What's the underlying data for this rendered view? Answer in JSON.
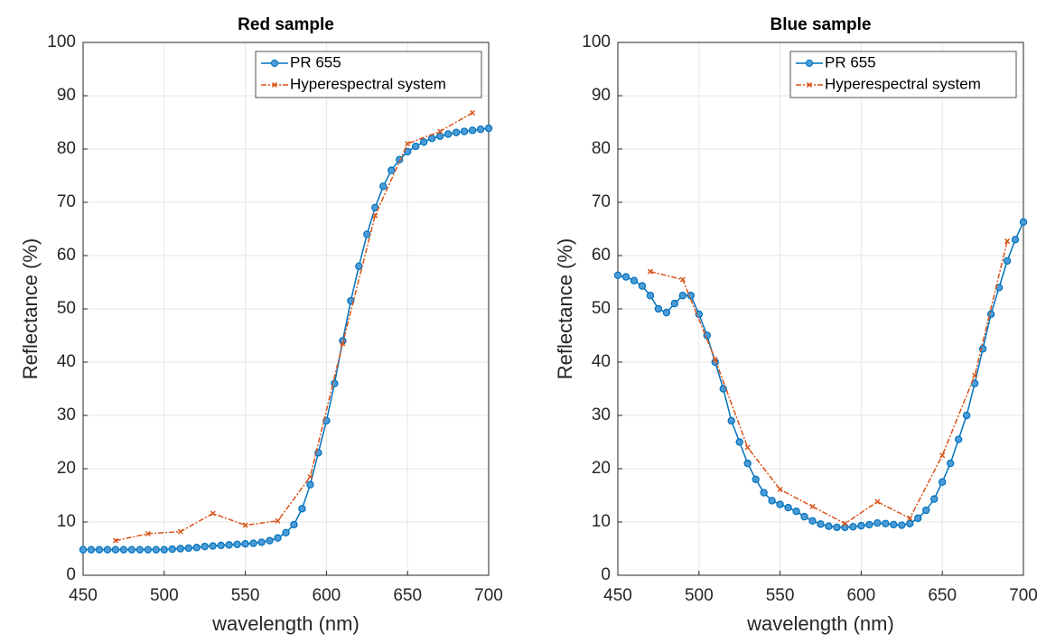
{
  "chart_data": [
    {
      "type": "line",
      "title": "Red sample",
      "x_label": "wavelength (nm)",
      "y_label": "Reflectance (%)",
      "xlim": [
        450,
        700
      ],
      "xticks": [
        450,
        500,
        550,
        600,
        650,
        700
      ],
      "ylim": [
        0,
        100
      ],
      "yticks": [
        0,
        10,
        20,
        30,
        40,
        50,
        60,
        70,
        80,
        90,
        100
      ],
      "grid": true,
      "legend": "upper right",
      "series": [
        {
          "name": "PR 655",
          "color": "#0072BD",
          "marker": "circle",
          "x": [
            450,
            455,
            460,
            465,
            470,
            475,
            480,
            485,
            490,
            495,
            500,
            505,
            510,
            515,
            520,
            525,
            530,
            535,
            540,
            545,
            550,
            555,
            560,
            565,
            570,
            575,
            580,
            585,
            590,
            595,
            600,
            605,
            610,
            615,
            620,
            625,
            630,
            635,
            640,
            645,
            650,
            655,
            660,
            665,
            670,
            675,
            680,
            685,
            690,
            695,
            700
          ],
          "values": [
            4.8,
            4.8,
            4.8,
            4.8,
            4.8,
            4.8,
            4.8,
            4.8,
            4.8,
            4.8,
            4.8,
            4.9,
            5.0,
            5.1,
            5.2,
            5.4,
            5.5,
            5.6,
            5.7,
            5.8,
            5.9,
            6.0,
            6.2,
            6.5,
            7.0,
            8.0,
            9.5,
            12.5,
            17,
            23,
            29,
            36,
            44,
            51.5,
            58,
            64,
            69,
            73,
            76,
            78,
            79.5,
            80.5,
            81.3,
            82,
            82.4,
            82.8,
            83.1,
            83.3,
            83.5,
            83.7,
            83.9
          ]
        },
        {
          "name": "Hyperespectral system",
          "color": "#D95319",
          "marker": "x",
          "dash": true,
          "x": [
            470,
            490,
            510,
            530,
            550,
            570,
            590,
            610,
            630,
            650,
            670,
            690
          ],
          "values": [
            6.5,
            7.8,
            8.2,
            11.6,
            9.4,
            10.2,
            18.5,
            43.5,
            67.5,
            81,
            83.3,
            86.8
          ]
        }
      ]
    },
    {
      "type": "line",
      "title": "Blue sample",
      "x_label": "wavelength (nm)",
      "y_label": "Reflectance (%)",
      "xlim": [
        450,
        700
      ],
      "xticks": [
        450,
        500,
        550,
        600,
        650,
        700
      ],
      "ylim": [
        0,
        100
      ],
      "yticks": [
        0,
        10,
        20,
        30,
        40,
        50,
        60,
        70,
        80,
        90,
        100
      ],
      "grid": true,
      "legend": "upper right",
      "series": [
        {
          "name": "PR 655",
          "color": "#0072BD",
          "marker": "circle",
          "x": [
            450,
            455,
            460,
            465,
            470,
            475,
            480,
            485,
            490,
            495,
            500,
            505,
            510,
            515,
            520,
            525,
            530,
            535,
            540,
            545,
            550,
            555,
            560,
            565,
            570,
            575,
            580,
            585,
            590,
            595,
            600,
            605,
            610,
            615,
            620,
            625,
            630,
            635,
            640,
            645,
            650,
            655,
            660,
            665,
            670,
            675,
            680,
            685,
            690,
            695,
            700
          ],
          "values": [
            56.3,
            56.0,
            55.3,
            54.3,
            52.5,
            50,
            49.3,
            51,
            52.5,
            52.5,
            49,
            45,
            40,
            35,
            29,
            25,
            21,
            18,
            15.5,
            14,
            13.3,
            12.7,
            12,
            11,
            10.2,
            9.6,
            9.2,
            9.0,
            9.0,
            9.1,
            9.3,
            9.5,
            9.8,
            9.7,
            9.5,
            9.4,
            9.7,
            10.7,
            12.2,
            14.3,
            17.5,
            21,
            25.5,
            30,
            36,
            42.5,
            49,
            54,
            59,
            63,
            66.3
          ]
        },
        {
          "name": "Hyperespectral system",
          "color": "#D95319",
          "marker": "x",
          "dash": true,
          "x": [
            470,
            490,
            510,
            530,
            550,
            570,
            590,
            610,
            630,
            650,
            670,
            690
          ],
          "values": [
            57,
            55.5,
            40.5,
            24,
            16.1,
            12.9,
            9.7,
            13.8,
            10.7,
            22.5,
            37.5,
            62.7
          ]
        }
      ]
    }
  ]
}
